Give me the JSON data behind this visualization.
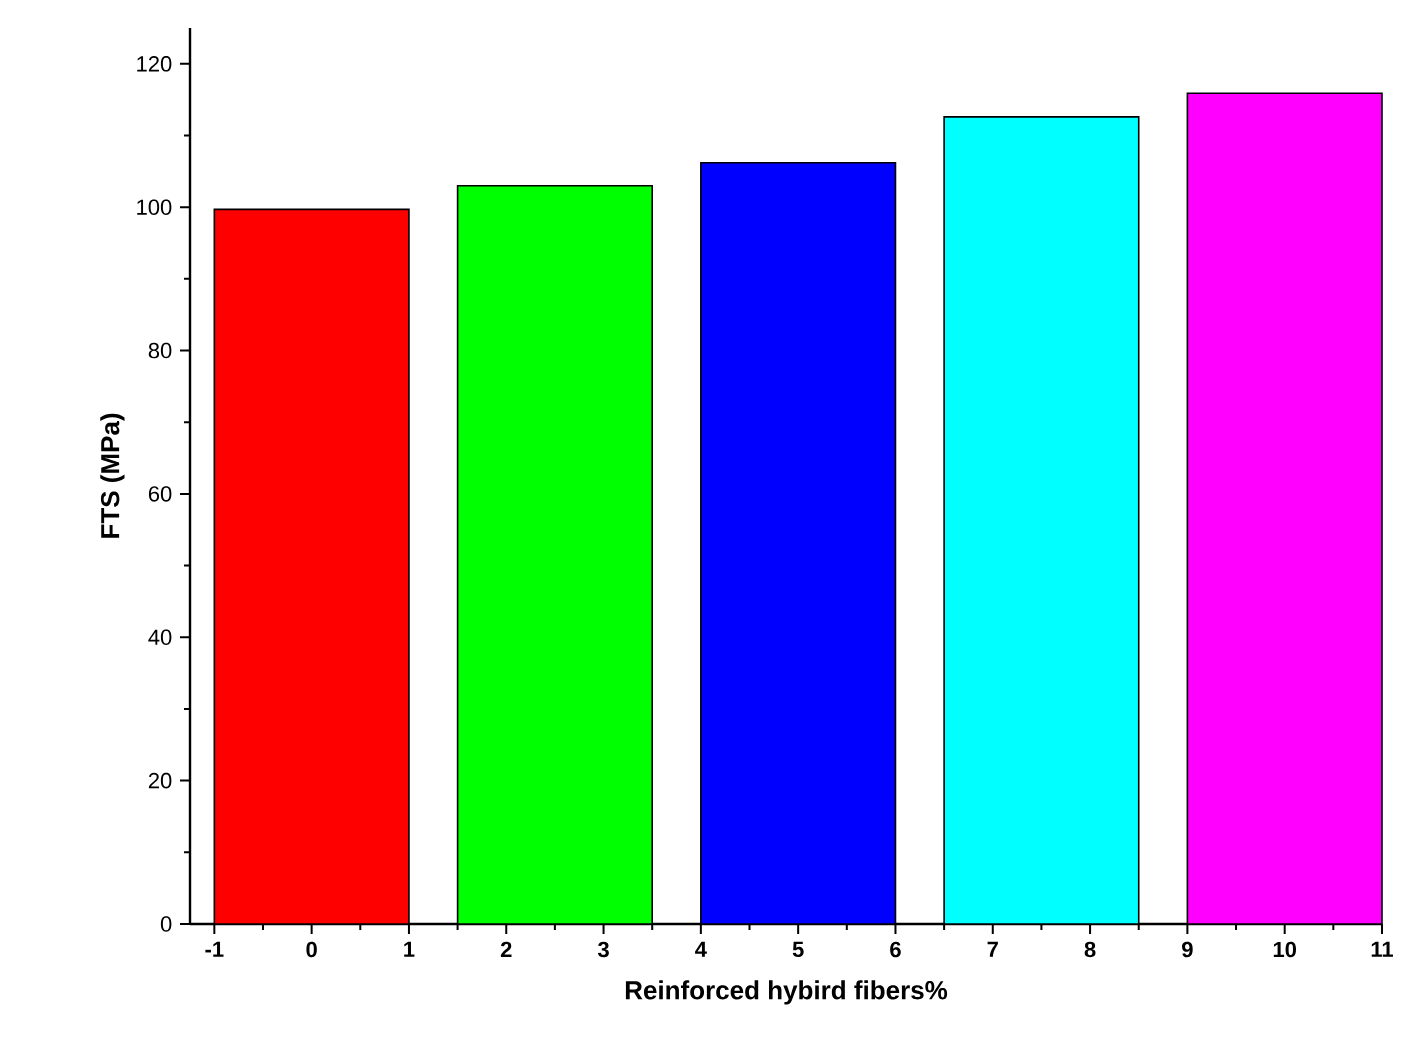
{
  "chart_data": {
    "type": "bar",
    "xlabel": "Reinforced hybird fibers%",
    "ylabel": "FTS (MPa)",
    "x": [
      0,
      2.5,
      5,
      7.5,
      10
    ],
    "values": [
      99.7,
      103,
      106.2,
      112.6,
      115.9
    ],
    "colors": [
      "#ff0000",
      "#00ff00",
      "#0000ff",
      "#00ffff",
      "#ff00ff"
    ],
    "xlim": [
      -1.25,
      11
    ],
    "xticks": [
      -1,
      0,
      1,
      2,
      3,
      4,
      5,
      6,
      7,
      8,
      9,
      10,
      11
    ],
    "ylim": [
      0,
      125
    ],
    "yticks": [
      0,
      20,
      40,
      60,
      80,
      100,
      120
    ],
    "grid": false
  }
}
